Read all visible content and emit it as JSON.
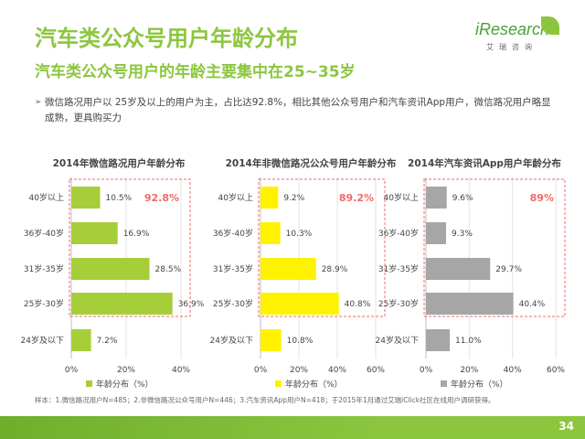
{
  "header": {
    "title": "汽车类公众号用户年龄分布",
    "subtitle": "汽车类公众号用户的年龄主要集中在25~35岁"
  },
  "logo": {
    "brand": "iResearch",
    "brand_sub": "艾瑞咨询",
    "icon": "leaf-icon"
  },
  "bullet": {
    "icon": "triangle-right-icon",
    "text": "微信路况用户以 25岁及以上的用户为主，占比达92.8%，相比其他公众号用户和汽车资讯App用户，微信路况用户略显成熟，更具购买力"
  },
  "chart_data": [
    {
      "type": "bar",
      "orientation": "horizontal",
      "title": "2014年微信路况用户年龄分布",
      "categories": [
        "40岁以上",
        "36岁-40岁",
        "31岁-35岁",
        "25岁-30岁",
        "24岁及以下"
      ],
      "values": [
        10.5,
        16.9,
        28.5,
        36.9,
        7.2
      ],
      "value_labels": [
        "10.5%",
        "16.9%",
        "28.5%",
        "36.9%",
        "7.2%"
      ],
      "xlim": [
        0,
        40
      ],
      "xticks": [
        "0%",
        "20%",
        "40%"
      ],
      "legend": "年龄分布（%）",
      "legend_position": "bottom",
      "color": "#a6ce39",
      "annotation": "92.8%",
      "grid": true
    },
    {
      "type": "bar",
      "orientation": "horizontal",
      "title": "2014年非微信路况公众号用户年龄分布",
      "categories": [
        "40岁以上",
        "36岁-40岁",
        "31岁-35岁",
        "25岁-30岁",
        "24岁及以下"
      ],
      "values": [
        9.2,
        10.3,
        28.9,
        40.8,
        10.8
      ],
      "value_labels": [
        "9.2%",
        "10.3%",
        "28.9%",
        "40.8%",
        "10.8%"
      ],
      "xlim": [
        0,
        60
      ],
      "xticks": [
        "0%",
        "20%",
        "40%",
        "60%"
      ],
      "legend": "年龄分布（%）",
      "legend_position": "bottom",
      "color": "#fff200",
      "annotation": "89.2%",
      "grid": true
    },
    {
      "type": "bar",
      "orientation": "horizontal",
      "title": "2014年汽车资讯App用户年龄分布",
      "categories": [
        "40岁以上",
        "36岁-40岁",
        "31岁-35岁",
        "25岁-30岁",
        "24岁及以下"
      ],
      "values": [
        9.6,
        9.3,
        29.7,
        40.4,
        11.0
      ],
      "value_labels": [
        "9.6%",
        "9.3%",
        "29.7%",
        "40.4%",
        "11.0%"
      ],
      "xlim": [
        0,
        60
      ],
      "xticks": [
        "0%",
        "20%",
        "40%",
        "60%"
      ],
      "legend": "年龄分布（%）",
      "legend_position": "bottom",
      "color": "#a6a6a6",
      "annotation": "89%",
      "grid": true
    }
  ],
  "colors": {
    "accent": "#8cc63f",
    "annotation": "#f06a6a"
  },
  "note": "样本：1.微信路况用户N=485；2.非微信路况公众号用户N=446；3.汽车资讯App用户N=418；于2015年1月通过艾瑞iClick社区在线用户调研获得。",
  "page_number": "34"
}
